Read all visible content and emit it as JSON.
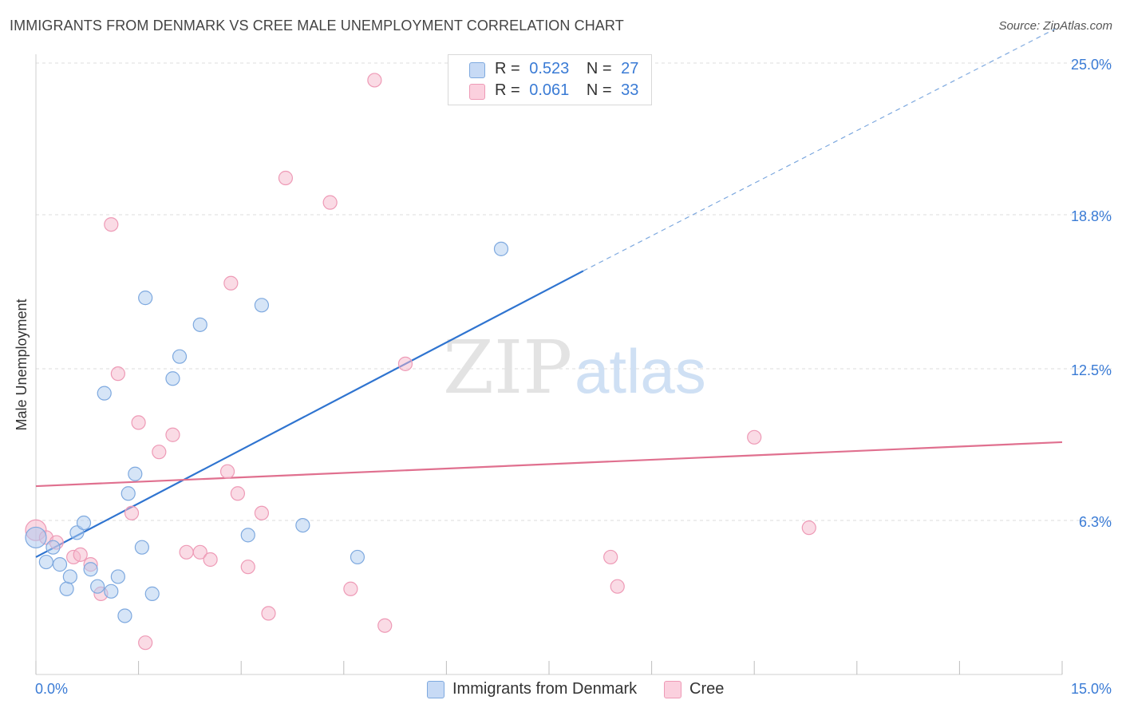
{
  "title": "IMMIGRANTS FROM DENMARK VS CREE MALE UNEMPLOYMENT CORRELATION CHART",
  "source": "Source: ZipAtlas.com",
  "watermark": {
    "zip": "ZIP",
    "atlas": "atlas"
  },
  "legend_top": {
    "series1": {
      "r_label": "R =",
      "r_value": "0.523",
      "n_label": "N =",
      "n_value": "27"
    },
    "series2": {
      "r_label": "R =",
      "r_value": "0.061",
      "n_label": "N =",
      "n_value": "33"
    }
  },
  "legend_bottom": {
    "series1": "Immigrants from Denmark",
    "series2": "Cree"
  },
  "colors": {
    "blue_fill": "#aecbf0",
    "blue_stroke": "#7ea9df",
    "blue_line": "#2f74d0",
    "pink_fill": "#f6b8cc",
    "pink_stroke": "#ee9ab6",
    "pink_line": "#e0708f",
    "tick_label": "#3a7bd5"
  },
  "chart_data": {
    "type": "scatter",
    "title": "IMMIGRANTS FROM DENMARK VS CREE MALE UNEMPLOYMENT CORRELATION CHART",
    "xlabel": "",
    "ylabel": "Male Unemployment",
    "xlim": [
      0,
      15
    ],
    "ylim": [
      0,
      25
    ],
    "x_tick_labels": [
      "0.0%",
      "15.0%"
    ],
    "y_ticks": [
      6.3,
      12.5,
      18.8,
      25.0
    ],
    "y_tick_labels": [
      "6.3%",
      "12.5%",
      "18.8%",
      "25.0%"
    ],
    "grid": true,
    "series": [
      {
        "name": "Immigrants from Denmark",
        "color": "#7ea9df",
        "r": 0.523,
        "n": 27,
        "trend": {
          "x0": 0.0,
          "y0": 4.8,
          "x1": 8.0,
          "y1": 16.5,
          "dash_to_x": 14.9,
          "dash_to_y": 26.4
        },
        "points": [
          [
            0.0,
            5.6
          ],
          [
            0.15,
            4.6
          ],
          [
            0.25,
            5.2
          ],
          [
            0.35,
            4.5
          ],
          [
            0.45,
            3.5
          ],
          [
            0.5,
            4.0
          ],
          [
            0.6,
            5.8
          ],
          [
            0.7,
            6.2
          ],
          [
            0.8,
            4.3
          ],
          [
            0.9,
            3.6
          ],
          [
            1.0,
            11.5
          ],
          [
            1.1,
            3.4
          ],
          [
            1.2,
            4.0
          ],
          [
            1.3,
            2.4
          ],
          [
            1.35,
            7.4
          ],
          [
            1.45,
            8.2
          ],
          [
            1.55,
            5.2
          ],
          [
            1.6,
            15.4
          ],
          [
            1.7,
            3.3
          ],
          [
            2.0,
            12.1
          ],
          [
            2.1,
            13.0
          ],
          [
            2.4,
            14.3
          ],
          [
            3.1,
            5.7
          ],
          [
            3.3,
            15.1
          ],
          [
            3.9,
            6.1
          ],
          [
            4.7,
            4.8
          ],
          [
            6.8,
            17.4
          ]
        ]
      },
      {
        "name": "Cree",
        "color": "#ee9ab6",
        "r": 0.061,
        "n": 33,
        "trend": {
          "x0": 0.0,
          "y0": 7.7,
          "x1": 15.0,
          "y1": 9.5
        },
        "points": [
          [
            0.0,
            5.9
          ],
          [
            0.15,
            5.6
          ],
          [
            0.3,
            5.4
          ],
          [
            0.55,
            4.8
          ],
          [
            0.65,
            4.9
          ],
          [
            0.8,
            4.5
          ],
          [
            0.95,
            3.3
          ],
          [
            1.1,
            18.4
          ],
          [
            1.2,
            12.3
          ],
          [
            1.4,
            6.6
          ],
          [
            1.5,
            10.3
          ],
          [
            1.6,
            1.3
          ],
          [
            1.8,
            9.1
          ],
          [
            2.0,
            9.8
          ],
          [
            2.2,
            5.0
          ],
          [
            2.4,
            5.0
          ],
          [
            2.55,
            4.7
          ],
          [
            2.8,
            8.3
          ],
          [
            2.85,
            16.0
          ],
          [
            2.95,
            7.4
          ],
          [
            3.1,
            4.4
          ],
          [
            3.3,
            6.6
          ],
          [
            3.4,
            2.5
          ],
          [
            3.65,
            20.3
          ],
          [
            4.3,
            19.3
          ],
          [
            4.6,
            3.5
          ],
          [
            4.95,
            24.3
          ],
          [
            5.1,
            2.0
          ],
          [
            5.4,
            12.7
          ],
          [
            8.4,
            4.8
          ],
          [
            8.5,
            3.6
          ],
          [
            10.5,
            9.7
          ],
          [
            11.3,
            6.0
          ]
        ]
      }
    ]
  }
}
